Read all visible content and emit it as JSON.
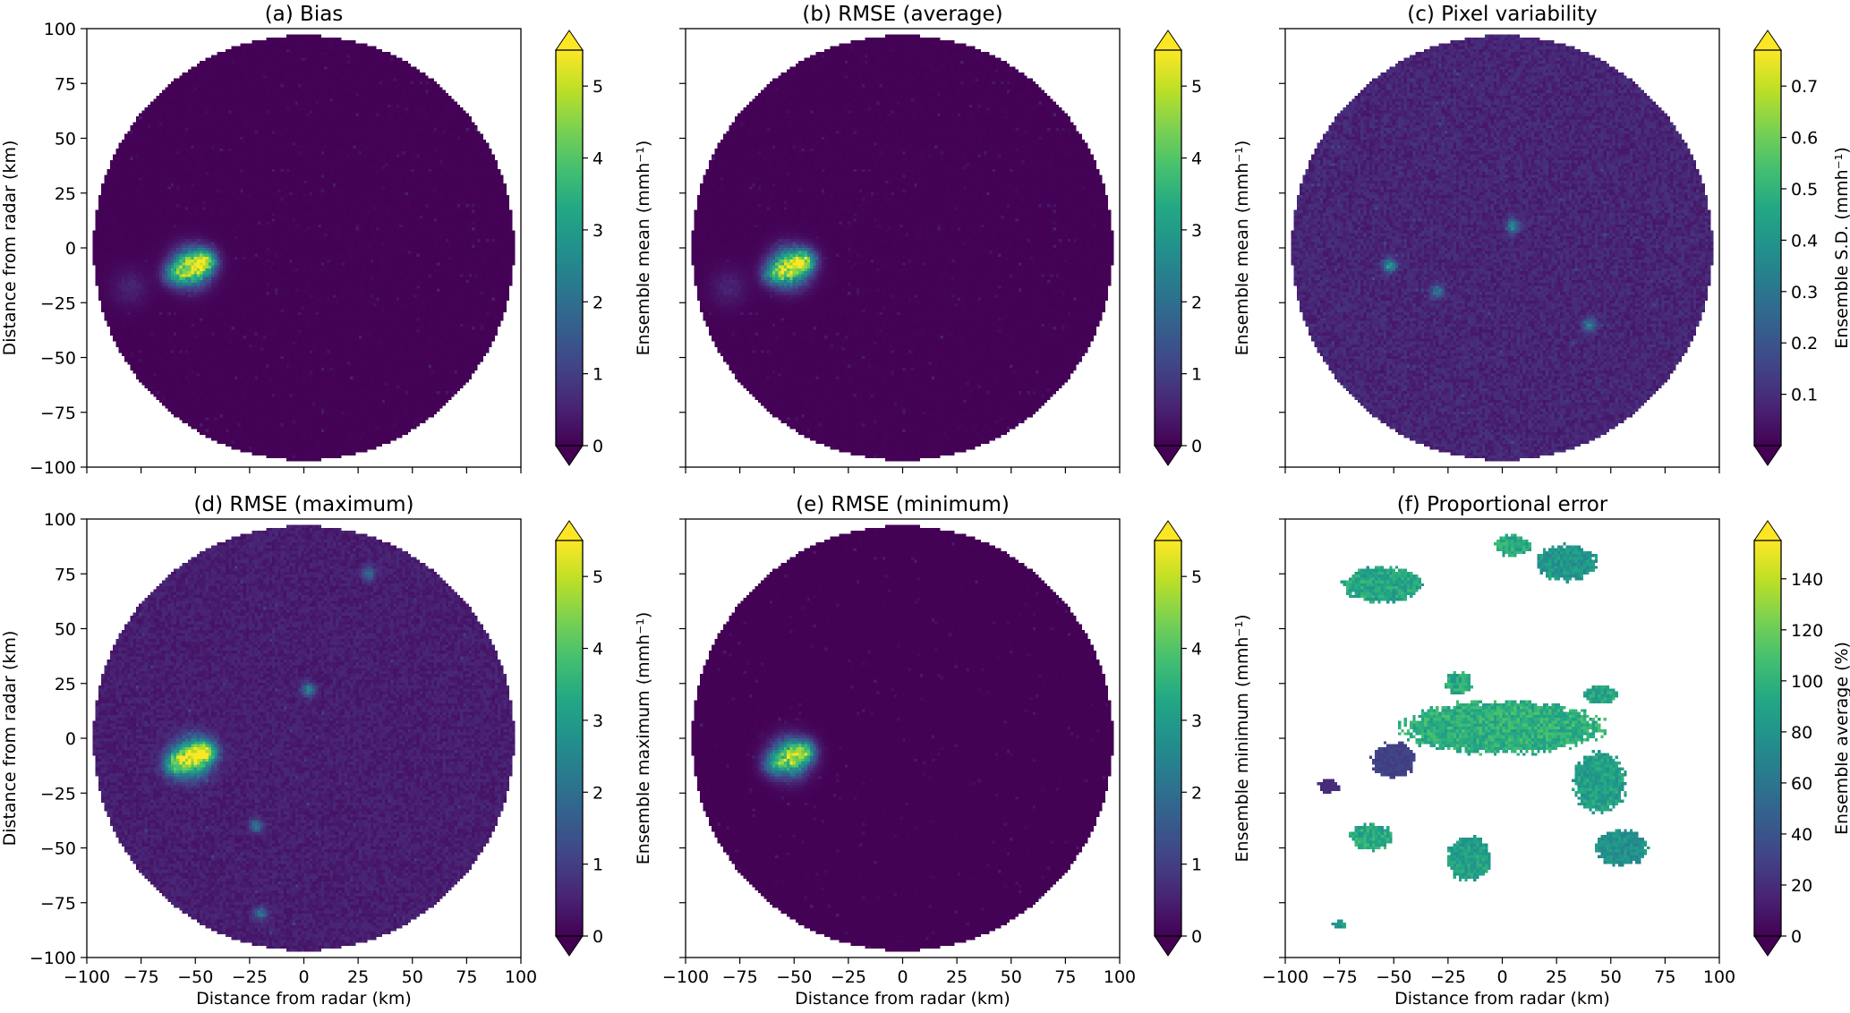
{
  "chart_data": [
    {
      "type": "heatmap",
      "title": "(a) Bias",
      "xlabel": "",
      "ylabel": "Distance from radar (km)",
      "xlim": [
        -100,
        100
      ],
      "ylim": [
        -100,
        100
      ],
      "x_ticks": [
        -100,
        -75,
        -50,
        -25,
        0,
        25,
        50,
        75,
        100
      ],
      "y_ticks": [
        -100,
        -75,
        -50,
        -25,
        0,
        25,
        50,
        75,
        100
      ],
      "colorbar": {
        "label": "Ensemble mean (mmh⁻¹)",
        "range": [
          0,
          5.5
        ],
        "ticks": [
          0,
          1,
          2,
          3,
          4,
          5
        ],
        "extend": "both",
        "colormap": "viridis"
      },
      "background_value": 0.03,
      "mask": "circle",
      "mask_radius_km": 97,
      "hotspots": [
        [
          -52,
          -9,
          8,
          5.0
        ],
        [
          -45,
          -6,
          5,
          3.2
        ],
        [
          -60,
          -12,
          5,
          2.0
        ],
        [
          -80,
          -18,
          8,
          0.5
        ]
      ]
    },
    {
      "type": "heatmap",
      "title": "(b) RMSE (average)",
      "xlabel": "",
      "ylabel": "",
      "xlim": [
        -100,
        100
      ],
      "ylim": [
        -100,
        100
      ],
      "x_ticks": [
        -100,
        -75,
        -50,
        -25,
        0,
        25,
        50,
        75,
        100
      ],
      "y_ticks": [
        -100,
        -75,
        -50,
        -25,
        0,
        25,
        50,
        75,
        100
      ],
      "colorbar": {
        "label": "Ensemble mean (mmh⁻¹)",
        "range": [
          0,
          5.5
        ],
        "ticks": [
          0,
          1,
          2,
          3,
          4,
          5
        ],
        "extend": "both",
        "colormap": "viridis"
      },
      "background_value": 0.03,
      "mask": "circle",
      "mask_radius_km": 97,
      "hotspots": [
        [
          -52,
          -9,
          8,
          5.0
        ],
        [
          -45,
          -6,
          5,
          3.2
        ],
        [
          -60,
          -12,
          5,
          2.0
        ],
        [
          -80,
          -18,
          8,
          0.5
        ]
      ]
    },
    {
      "type": "heatmap",
      "title": "(c) Pixel variability",
      "xlabel": "",
      "ylabel": "",
      "xlim": [
        -100,
        100
      ],
      "ylim": [
        -100,
        100
      ],
      "x_ticks": [
        -100,
        -75,
        -50,
        -25,
        0,
        25,
        50,
        75,
        100
      ],
      "y_ticks": [
        -100,
        -75,
        -50,
        -25,
        0,
        25,
        50,
        75,
        100
      ],
      "colorbar": {
        "label": "Ensemble S.D. (mmh⁻¹)",
        "range": [
          0,
          0.77
        ],
        "ticks": [
          0.1,
          0.2,
          0.3,
          0.4,
          0.5,
          0.6,
          0.7
        ],
        "extend": "both",
        "colormap": "viridis"
      },
      "background_value": 0.08,
      "mask": "circle",
      "mask_radius_km": 97,
      "hotspots": [
        [
          -52,
          -8,
          3,
          0.35
        ],
        [
          5,
          10,
          3,
          0.3
        ],
        [
          -30,
          -20,
          3,
          0.25
        ],
        [
          40,
          -35,
          3,
          0.25
        ]
      ]
    },
    {
      "type": "heatmap",
      "title": "(d) RMSE (maximum)",
      "xlabel": "Distance from radar (km)",
      "ylabel": "Distance from radar (km)",
      "xlim": [
        -100,
        100
      ],
      "ylim": [
        -100,
        100
      ],
      "x_ticks": [
        -100,
        -75,
        -50,
        -25,
        0,
        25,
        50,
        75,
        100
      ],
      "y_ticks": [
        -100,
        -75,
        -50,
        -25,
        0,
        25,
        50,
        75,
        100
      ],
      "colorbar": {
        "label": "Ensemble maximum (mmh⁻¹)",
        "range": [
          0,
          5.5
        ],
        "ticks": [
          0,
          1,
          2,
          3,
          4,
          5
        ],
        "extend": "both",
        "colormap": "viridis"
      },
      "background_value": 0.45,
      "mask": "circle",
      "mask_radius_km": 97,
      "hotspots": [
        [
          -52,
          -9,
          8,
          5.0
        ],
        [
          -45,
          -6,
          5,
          3.4
        ],
        [
          -60,
          -12,
          5,
          2.2
        ],
        [
          2,
          22,
          3,
          2.0
        ],
        [
          -22,
          -40,
          3,
          1.6
        ],
        [
          -20,
          -80,
          3,
          1.6
        ],
        [
          30,
          75,
          3,
          1.5
        ]
      ]
    },
    {
      "type": "heatmap",
      "title": "(e) RMSE (minimum)",
      "xlabel": "Distance from radar (km)",
      "ylabel": "",
      "xlim": [
        -100,
        100
      ],
      "ylim": [
        -100,
        100
      ],
      "x_ticks": [
        -100,
        -75,
        -50,
        -25,
        0,
        25,
        50,
        75,
        100
      ],
      "y_ticks": [
        -100,
        -75,
        -50,
        -25,
        0,
        25,
        50,
        75,
        100
      ],
      "colorbar": {
        "label": "Ensemble minimum (mmh⁻¹)",
        "range": [
          0,
          5.5
        ],
        "ticks": [
          0,
          1,
          2,
          3,
          4,
          5
        ],
        "extend": "both",
        "colormap": "viridis"
      },
      "background_value": 0.02,
      "mask": "circle",
      "mask_radius_km": 97,
      "hotspots": [
        [
          -52,
          -9,
          8,
          4.6
        ],
        [
          -45,
          -6,
          5,
          2.8
        ],
        [
          -60,
          -12,
          5,
          1.6
        ]
      ]
    },
    {
      "type": "heatmap",
      "title": "(f) Proportional error",
      "xlabel": "Distance from radar (km)",
      "ylabel": "",
      "xlim": [
        -100,
        100
      ],
      "ylim": [
        -100,
        100
      ],
      "x_ticks": [
        -100,
        -75,
        -50,
        -25,
        0,
        25,
        50,
        75,
        100
      ],
      "y_ticks": [
        -100,
        -75,
        -50,
        -25,
        0,
        25,
        50,
        75,
        100
      ],
      "colorbar": {
        "label": "Ensemble average (%)",
        "range": [
          0,
          155
        ],
        "ticks": [
          0,
          20,
          40,
          60,
          80,
          100,
          120,
          140
        ],
        "extend": "both",
        "colormap": "viridis"
      },
      "background_value": null,
      "mask": "regions",
      "regions": [
        {
          "cx": -55,
          "cy": 70,
          "rx": 18,
          "ry": 8,
          "value": 92
        },
        {
          "cx": 30,
          "cy": 80,
          "rx": 14,
          "ry": 8,
          "value": 82
        },
        {
          "cx": 5,
          "cy": 88,
          "rx": 8,
          "ry": 5,
          "value": 95
        },
        {
          "cx": 0,
          "cy": 5,
          "rx": 45,
          "ry": 12,
          "value": 98
        },
        {
          "cx": 45,
          "cy": -20,
          "rx": 12,
          "ry": 14,
          "value": 88
        },
        {
          "cx": -50,
          "cy": -10,
          "rx": 10,
          "ry": 8,
          "value": 30
        },
        {
          "cx": -80,
          "cy": -22,
          "rx": 5,
          "ry": 3,
          "value": 20
        },
        {
          "cx": -60,
          "cy": -45,
          "rx": 10,
          "ry": 6,
          "value": 95
        },
        {
          "cx": -15,
          "cy": -55,
          "rx": 10,
          "ry": 10,
          "value": 88
        },
        {
          "cx": 55,
          "cy": -50,
          "rx": 12,
          "ry": 8,
          "value": 78
        },
        {
          "cx": -75,
          "cy": -85,
          "rx": 3,
          "ry": 2,
          "value": 85
        },
        {
          "cx": -20,
          "cy": 25,
          "rx": 6,
          "ry": 5,
          "value": 95
        },
        {
          "cx": 45,
          "cy": 20,
          "rx": 8,
          "ry": 4,
          "value": 92
        }
      ]
    }
  ]
}
